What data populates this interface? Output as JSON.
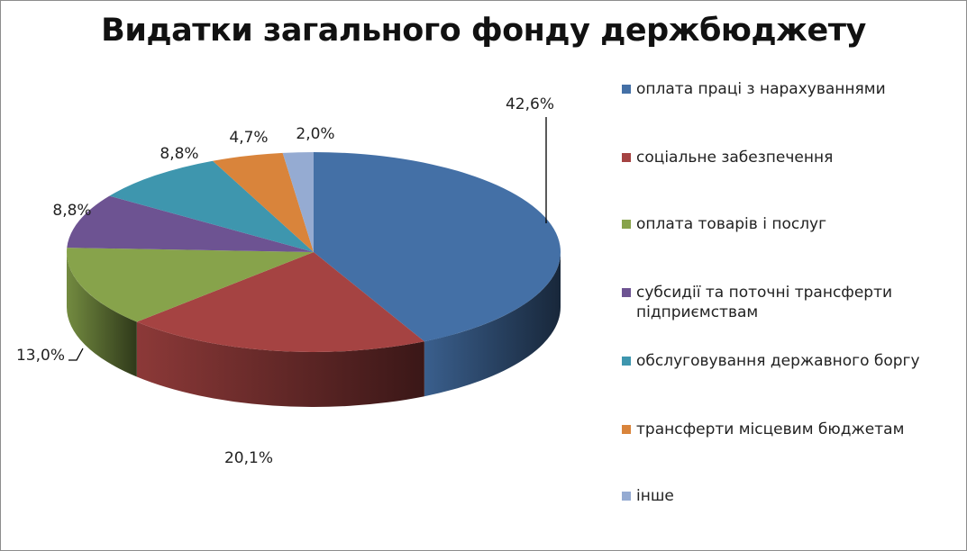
{
  "chart_data": {
    "type": "pie",
    "title": "Видатки загального фонду держбюджету",
    "slices": [
      {
        "label": "оплата праці з нарахуваннями",
        "value": 42.6,
        "value_label": "42,6%",
        "color": "#4470a6"
      },
      {
        "label": "соціальне забезпечення",
        "value": 20.1,
        "value_label": "20,1%",
        "color": "#a54342"
      },
      {
        "label": "оплата товарів і послуг",
        "value": 13.0,
        "value_label": "13,0%",
        "color": "#87a34b"
      },
      {
        "label": "субсидії та поточні трансферти підприємствам",
        "value": 8.8,
        "value_label": "8,8%",
        "color": "#6d5392"
      },
      {
        "label": "обслуговування державного боргу",
        "value": 8.8,
        "value_label": "8,8%",
        "color": "#3e96ae"
      },
      {
        "label": "трансферти місцевим бюджетам",
        "value": 4.7,
        "value_label": "4,7%",
        "color": "#d9843b"
      },
      {
        "label": "інше",
        "value": 2.0,
        "value_label": "2,0%",
        "color": "#95abd2"
      }
    ],
    "legend_position": "right",
    "style": "3d"
  }
}
